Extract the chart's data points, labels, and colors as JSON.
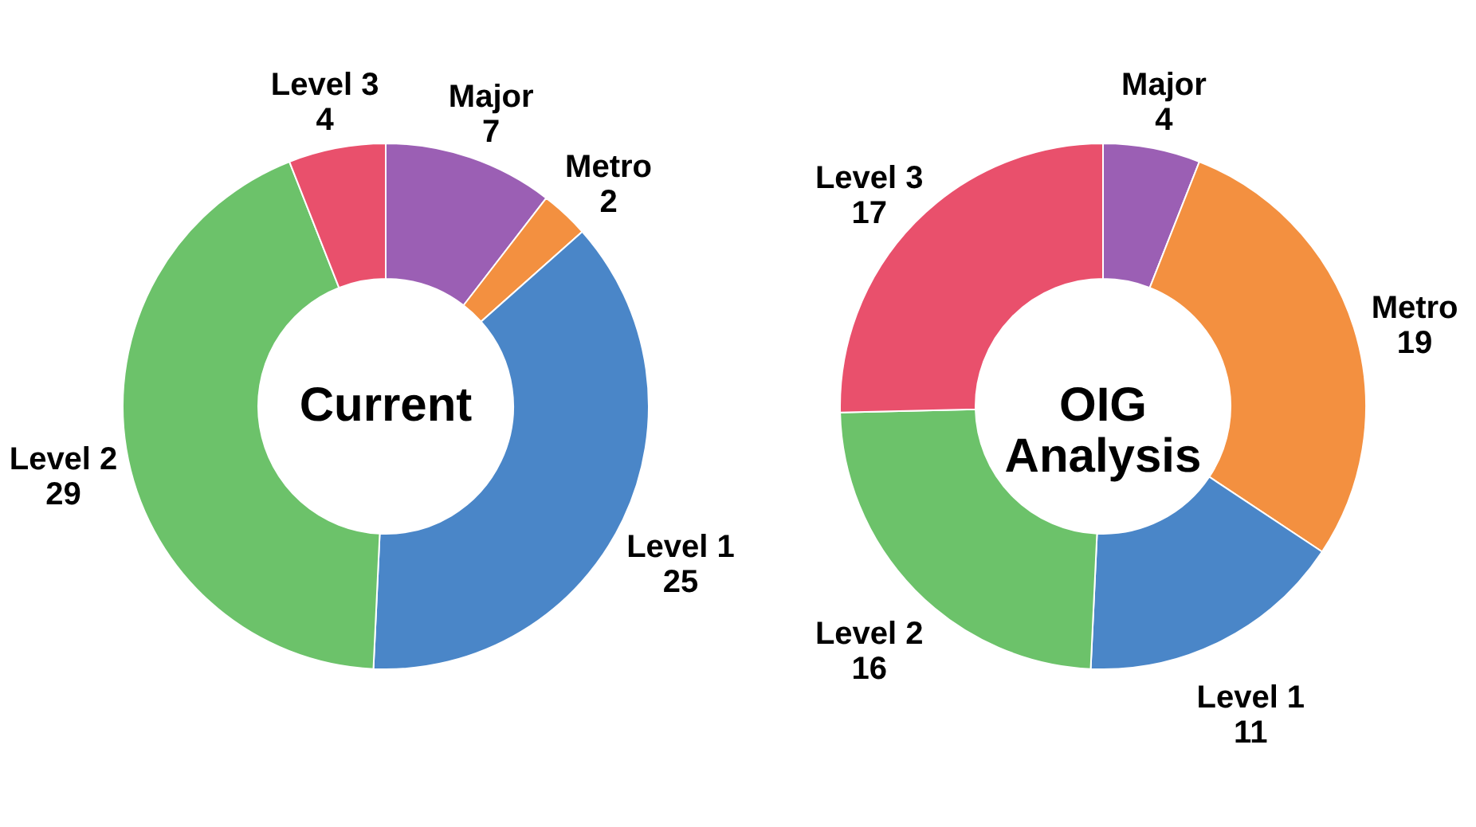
{
  "chart_data": [
    {
      "type": "donut",
      "title": "Current",
      "categories": [
        "Major",
        "Metro",
        "Level 1",
        "Level 2",
        "Level 3"
      ],
      "values": [
        7,
        2,
        25,
        29,
        4
      ],
      "colors": [
        "#9b5fb4",
        "#f39040",
        "#4a86c8",
        "#6cc26a",
        "#e9506c"
      ],
      "data_labels": true
    },
    {
      "type": "donut",
      "title": "OIG Analysis",
      "categories": [
        "Major",
        "Metro",
        "Level 1",
        "Level 2",
        "Level 3"
      ],
      "values": [
        4,
        19,
        11,
        16,
        17
      ],
      "colors": [
        "#9b5fb4",
        "#f39040",
        "#4a86c8",
        "#6cc26a",
        "#e9506c"
      ],
      "data_labels": true
    }
  ]
}
